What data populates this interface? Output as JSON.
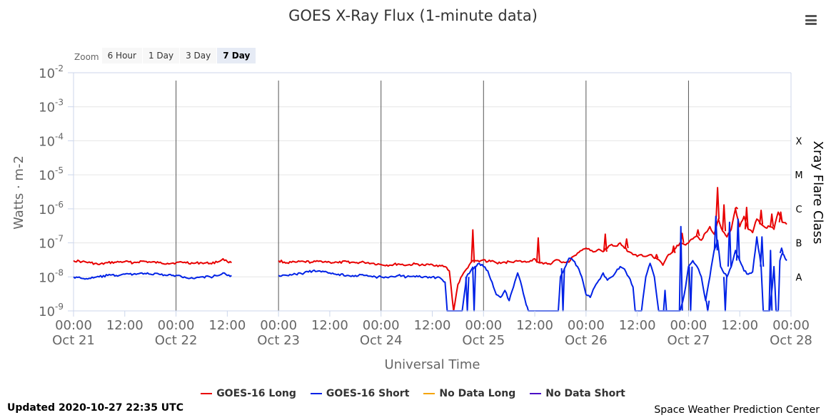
{
  "title": "GOES X-Ray Flux (1-minute data)",
  "zoom": {
    "label": "Zoom",
    "buttons": [
      "6 Hour",
      "1 Day",
      "3 Day",
      "7 Day"
    ],
    "active": "7 Day"
  },
  "legend": [
    {
      "label": "GOES-16 Long",
      "color": "#e80000"
    },
    {
      "label": "GOES-16 Short",
      "color": "#0022e6"
    },
    {
      "label": "No Data Long",
      "color": "#f5a400"
    },
    {
      "label": "No Data Short",
      "color": "#4a0fc6"
    }
  ],
  "updated": "Updated 2020-10-27 22:35 UTC",
  "credit": "Space Weather Prediction Center",
  "chart_data": {
    "type": "line",
    "title": "GOES X-Ray Flux (1-minute data)",
    "xlabel": "Universal Time",
    "ylabel": "Watts · m-2",
    "y2label": "Xray Flare Class",
    "yscale": "log",
    "ylim": [
      1e-09,
      0.01
    ],
    "xlim_hours": [
      0,
      168
    ],
    "y_ticks": [
      {
        "base": "10",
        "exp": "-2",
        "value": 0.01
      },
      {
        "base": "10",
        "exp": "-3",
        "value": 0.001
      },
      {
        "base": "10",
        "exp": "-4",
        "value": 0.0001
      },
      {
        "base": "10",
        "exp": "-5",
        "value": 1e-05
      },
      {
        "base": "10",
        "exp": "-6",
        "value": 1e-06
      },
      {
        "base": "10",
        "exp": "-7",
        "value": 1e-07
      },
      {
        "base": "10",
        "exp": "-8",
        "value": 1e-08
      },
      {
        "base": "10",
        "exp": "-9",
        "value": 1e-09
      }
    ],
    "x_ticks": [
      {
        "time": "00:00",
        "date": "Oct 21",
        "hour": 0
      },
      {
        "time": "12:00",
        "date": "",
        "hour": 12
      },
      {
        "time": "00:00",
        "date": "Oct 22",
        "hour": 24
      },
      {
        "time": "12:00",
        "date": "",
        "hour": 36
      },
      {
        "time": "00:00",
        "date": "Oct 23",
        "hour": 48
      },
      {
        "time": "12:00",
        "date": "",
        "hour": 60
      },
      {
        "time": "00:00",
        "date": "Oct 24",
        "hour": 72
      },
      {
        "time": "12:00",
        "date": "",
        "hour": 84
      },
      {
        "time": "00:00",
        "date": "Oct 25",
        "hour": 96
      },
      {
        "time": "12:00",
        "date": "",
        "hour": 108
      },
      {
        "time": "00:00",
        "date": "Oct 26",
        "hour": 120
      },
      {
        "time": "12:00",
        "date": "",
        "hour": 132
      },
      {
        "time": "00:00",
        "date": "Oct 27",
        "hour": 144
      },
      {
        "time": "12:00",
        "date": "",
        "hour": 156
      },
      {
        "time": "00:00",
        "date": "Oct 28",
        "hour": 168
      }
    ],
    "day_lines_hours": [
      24,
      48,
      72,
      96,
      120,
      144
    ],
    "flare_classes": [
      {
        "label": "X",
        "value": 0.0001
      },
      {
        "label": "M",
        "value": 1e-05
      },
      {
        "label": "C",
        "value": 1e-06
      },
      {
        "label": "B",
        "value": 1e-07
      },
      {
        "label": "A",
        "value": 1e-08
      }
    ],
    "series": [
      {
        "name": "GOES-16 Long",
        "color": "#e80000",
        "points": [
          [
            0,
            3e-08
          ],
          [
            2,
            2.8e-08
          ],
          [
            4,
            2.6e-08
          ],
          [
            6,
            2.3e-08
          ],
          [
            8,
            2.6e-08
          ],
          [
            10,
            2.7e-08
          ],
          [
            12,
            2.8e-08
          ],
          [
            14,
            2.6e-08
          ],
          [
            16,
            2.9e-08
          ],
          [
            18,
            2.7e-08
          ],
          [
            20,
            2.6e-08
          ],
          [
            22,
            2.5e-08
          ],
          [
            24,
            2.6e-08
          ],
          [
            26,
            2.7e-08
          ],
          [
            28,
            2.5e-08
          ],
          [
            30,
            2.6e-08
          ],
          [
            32,
            2.5e-08
          ],
          [
            34,
            2.8e-08
          ],
          [
            35,
            3.4e-08
          ],
          [
            36,
            2.8e-08
          ],
          [
            37,
            2.6e-08
          ],
          null,
          [
            48,
            3e-08
          ],
          [
            50,
            2.6e-08
          ],
          [
            52,
            2.7e-08
          ],
          [
            54,
            2.8e-08
          ],
          [
            56,
            2.7e-08
          ],
          [
            58,
            2.9e-08
          ],
          [
            60,
            2.7e-08
          ],
          [
            62,
            2.6e-08
          ],
          [
            64,
            2.8e-08
          ],
          [
            66,
            2.6e-08
          ],
          [
            68,
            2.7e-08
          ],
          [
            70,
            2.5e-08
          ],
          [
            72,
            2.3e-08
          ],
          [
            74,
            2.2e-08
          ],
          [
            76,
            2.4e-08
          ],
          [
            78,
            2.2e-08
          ],
          [
            80,
            2.4e-08
          ],
          [
            82,
            2.2e-08
          ],
          [
            84,
            2.3e-08
          ],
          [
            86,
            2.1e-08
          ],
          [
            87,
            2e-08
          ],
          [
            88,
            1.5e-08
          ],
          [
            89,
            1e-09
          ],
          [
            90,
            6e-09
          ],
          [
            91,
            1.1e-08
          ],
          [
            92,
            1.7e-08
          ],
          [
            93,
            2.6e-08
          ],
          [
            94,
            3e-08
          ],
          [
            95,
            2.8e-08
          ],
          [
            96,
            3.2e-08
          ],
          [
            97,
            2.8e-08
          ],
          [
            98,
            3e-08
          ],
          [
            99,
            2.6e-08
          ],
          [
            100,
            2.5e-08
          ],
          [
            102,
            2.8e-08
          ],
          [
            104,
            2.9e-08
          ],
          [
            106,
            2.7e-08
          ],
          [
            107,
            3e-08
          ],
          [
            108,
            3.4e-08
          ],
          [
            109,
            2.6e-08
          ],
          [
            110,
            2.4e-08
          ],
          [
            112,
            2.5e-08
          ],
          [
            113,
            3.2e-08
          ],
          [
            114,
            2.8e-08
          ],
          [
            116,
            2.7e-08
          ],
          [
            117,
            4e-08
          ],
          [
            118,
            5e-08
          ],
          [
            119,
            6e-08
          ],
          [
            120,
            7e-08
          ],
          [
            121,
            6e-08
          ],
          [
            122,
            5.5e-08
          ],
          [
            123,
            6.5e-08
          ],
          [
            124,
            5.5e-08
          ],
          [
            125,
            7e-08
          ],
          [
            126,
            9e-08
          ],
          [
            127,
            8e-08
          ],
          [
            128,
            1e-07
          ],
          [
            129,
            7e-08
          ],
          [
            130,
            5.5e-08
          ],
          [
            131,
            4.5e-08
          ],
          [
            132,
            4e-08
          ],
          [
            133,
            4.5e-08
          ],
          [
            134,
            4e-08
          ],
          [
            135,
            4.5e-08
          ],
          [
            136,
            3.5e-08
          ],
          [
            137,
            3.2e-08
          ],
          [
            138,
            2.2e-08
          ],
          [
            139,
            4e-08
          ],
          [
            140,
            5e-08
          ],
          [
            141,
            7e-08
          ],
          [
            142,
            1e-07
          ],
          [
            143,
            9e-08
          ],
          [
            144,
            1e-07
          ],
          [
            145,
            1.3e-07
          ],
          [
            146,
            1.6e-07
          ],
          [
            147,
            1.2e-07
          ],
          [
            148,
            2e-07
          ],
          [
            149,
            3e-07
          ],
          [
            150,
            1.8e-07
          ],
          [
            151,
            5e-07
          ],
          [
            152,
            2.2e-07
          ],
          [
            153,
            1.5e-07
          ],
          [
            154,
            2.5e-07
          ],
          [
            155,
            1e-06
          ],
          [
            156,
            3e-07
          ],
          [
            157,
            6e-07
          ],
          [
            158,
            2.5e-07
          ],
          [
            159,
            2e-07
          ],
          [
            160,
            5e-07
          ],
          [
            161,
            3.5e-07
          ],
          [
            162,
            2.8e-07
          ],
          [
            163,
            3e-07
          ],
          [
            164,
            2.5e-07
          ],
          [
            165,
            8e-07
          ],
          [
            166,
            4e-07
          ],
          [
            167,
            3.5e-07
          ]
        ],
        "spikes": [
          [
            93.5,
            2.4e-07
          ],
          [
            108.8,
            1.4e-07
          ],
          [
            124.5,
            1.8e-07
          ],
          [
            129.5,
            1.3e-07
          ],
          [
            136.5,
            4.5e-08
          ],
          [
            140.5,
            8e-08
          ],
          [
            142.5,
            1.9e-07
          ],
          [
            146.2,
            2.4e-07
          ],
          [
            150.8,
            4.2e-06
          ],
          [
            152.3,
            1.3e-06
          ],
          [
            155.2,
            1.1e-06
          ],
          [
            157.6,
            1.1e-06
          ],
          [
            161,
            9e-07
          ],
          [
            163.5,
            7e-07
          ],
          [
            165.6,
            8e-07
          ]
        ]
      },
      {
        "name": "GOES-16 Short",
        "color": "#0022e6",
        "points": [
          [
            0,
            1e-08
          ],
          [
            2,
            9e-09
          ],
          [
            4,
            9e-09
          ],
          [
            6,
            1e-08
          ],
          [
            8,
            1.1e-08
          ],
          [
            10,
            1.1e-08
          ],
          [
            12,
            1.2e-08
          ],
          [
            14,
            1.2e-08
          ],
          [
            16,
            1.3e-08
          ],
          [
            18,
            1.2e-08
          ],
          [
            20,
            1.2e-08
          ],
          [
            22,
            1.1e-08
          ],
          [
            24,
            1.1e-08
          ],
          [
            26,
            1e-08
          ],
          [
            28,
            9e-09
          ],
          [
            30,
            1e-08
          ],
          [
            32,
            1e-08
          ],
          [
            34,
            1.1e-08
          ],
          [
            35,
            1.3e-08
          ],
          [
            36,
            1.1e-08
          ],
          [
            37,
            1.1e-08
          ],
          null,
          [
            48,
            1.1e-08
          ],
          [
            50,
            1.1e-08
          ],
          [
            52,
            1.2e-08
          ],
          [
            54,
            1.3e-08
          ],
          [
            56,
            1.5e-08
          ],
          [
            58,
            1.4e-08
          ],
          [
            60,
            1.3e-08
          ],
          [
            62,
            1.2e-08
          ],
          [
            64,
            1.1e-08
          ],
          [
            66,
            1.1e-08
          ],
          [
            68,
            1.1e-08
          ],
          [
            70,
            1e-08
          ],
          [
            72,
            1e-08
          ],
          [
            74,
            1e-08
          ],
          [
            76,
            1.1e-08
          ],
          [
            78,
            1e-08
          ],
          [
            80,
            1e-08
          ],
          [
            82,
            1e-08
          ],
          [
            84,
            1e-08
          ],
          [
            86,
            9e-09
          ],
          [
            87,
            7e-09
          ],
          [
            87.5,
            1e-09
          ],
          [
            91,
            1e-09
          ],
          [
            91.8,
            6e-09
          ],
          [
            92,
            1e-08
          ],
          [
            93,
            1.5e-08
          ],
          [
            94,
            2e-08
          ],
          [
            95,
            2.5e-08
          ],
          [
            96,
            2e-08
          ],
          [
            97,
            1.5e-08
          ],
          [
            98,
            7e-09
          ],
          [
            99,
            3e-09
          ],
          [
            100,
            2.5e-09
          ],
          [
            101,
            4e-09
          ],
          [
            102,
            2e-09
          ],
          [
            103,
            5e-09
          ],
          [
            104,
            1.3e-08
          ],
          [
            105,
            5e-09
          ],
          [
            106,
            1.5e-09
          ],
          [
            106.5,
            1e-09
          ],
          [
            113.5,
            1e-09
          ],
          [
            114,
            1e-08
          ],
          [
            115,
            1.8e-08
          ],
          [
            116,
            3.5e-08
          ],
          [
            117,
            3e-08
          ],
          [
            118,
            2e-08
          ],
          [
            119,
            1e-08
          ],
          [
            120,
            3e-09
          ],
          [
            121,
            2.5e-09
          ],
          [
            122,
            5e-09
          ],
          [
            123,
            8e-09
          ],
          [
            124,
            1.3e-08
          ],
          [
            125,
            8e-09
          ],
          [
            126,
            1e-08
          ],
          [
            127,
            1.4e-08
          ],
          [
            128,
            2e-08
          ],
          [
            129,
            1.7e-08
          ],
          [
            130,
            1e-08
          ],
          [
            131,
            5e-09
          ],
          [
            131.5,
            1e-09
          ],
          [
            133,
            1e-09
          ],
          [
            134,
            1e-08
          ],
          [
            135,
            2.5e-08
          ],
          [
            136,
            1e-08
          ],
          [
            137,
            1e-09
          ],
          [
            138,
            1e-09
          ],
          [
            139,
            1e-09
          ],
          [
            140,
            1e-09
          ],
          [
            141,
            1e-09
          ],
          [
            142,
            1e-09
          ],
          [
            143,
            3e-09
          ],
          [
            144,
            2e-08
          ],
          [
            145,
            3e-08
          ],
          [
            146,
            2e-08
          ],
          [
            147,
            1e-08
          ],
          [
            148,
            2e-09
          ],
          [
            149,
            1e-08
          ],
          [
            150,
            6e-08
          ],
          [
            150.8,
            1.2e-07
          ],
          [
            151.5,
            2e-08
          ],
          [
            152,
            1.5e-08
          ],
          [
            153,
            1e-08
          ],
          [
            154,
            2e-08
          ],
          [
            155,
            6e-08
          ],
          [
            156,
            3e-08
          ],
          [
            157,
            1.5e-08
          ],
          [
            158,
            1.2e-08
          ],
          [
            159,
            1.4e-08
          ],
          [
            160,
            1.5e-07
          ],
          [
            161,
            2e-08
          ],
          [
            161.5,
            1e-09
          ],
          [
            163,
            1e-09
          ],
          [
            163.6,
            5e-09
          ],
          [
            164,
            2e-08
          ],
          [
            164.5,
            1e-09
          ],
          [
            165,
            1e-09
          ],
          [
            165.4,
            3e-08
          ],
          [
            166,
            5e-08
          ],
          [
            167,
            3e-08
          ]
        ],
        "spikes": [
          [
            92.2,
            1e-09
          ],
          [
            93.8,
            1e-09
          ],
          [
            114.6,
            1e-09
          ],
          [
            138.5,
            4e-09
          ],
          [
            139.5,
            1e-09
          ],
          [
            142.2,
            3e-07
          ],
          [
            144.5,
            1e-09
          ],
          [
            148.5,
            1e-09
          ],
          [
            150.4,
            6e-07
          ],
          [
            152.6,
            1e-09
          ],
          [
            153.6,
            4e-07
          ],
          [
            155.6,
            5e-07
          ],
          [
            161.2,
            1.5e-07
          ],
          [
            162.2,
            1e-09
          ],
          [
            163.2,
            6e-08
          ],
          [
            165.8,
            7e-08
          ]
        ]
      }
    ]
  }
}
